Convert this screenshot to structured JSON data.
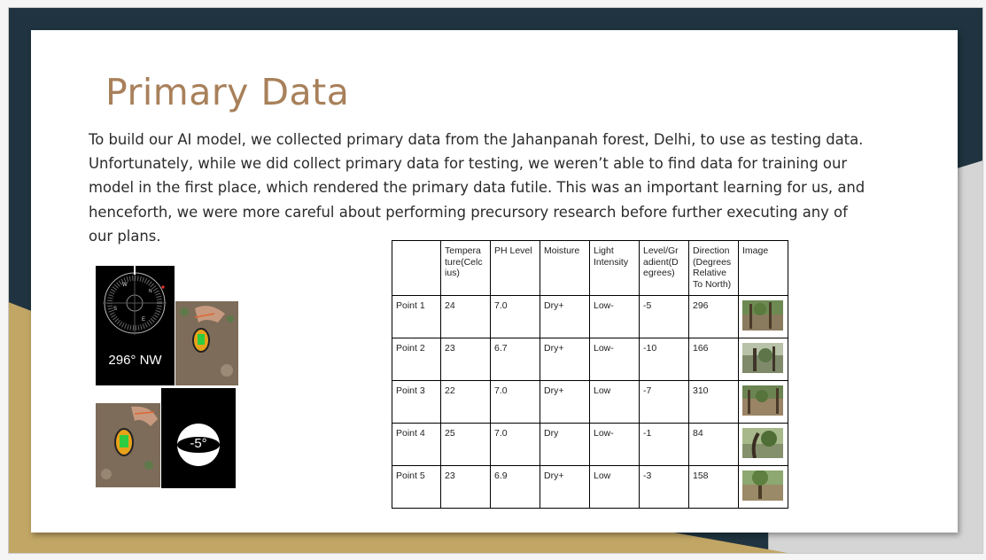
{
  "slide": {
    "title": "Primary Data",
    "body": "To build our AI model, we collected primary data from the Jahanpanah forest, Delhi, to use as testing data. Unfortunately, while we did collect primary data for testing, we weren’t able to find data for training our model in the first place, which rendered the primary data futile. This was an important learning for us, and henceforth, we were more careful about performing precursory research before further executing any of our plans."
  },
  "photos": {
    "compass_reading": "296° NW",
    "level_reading": "-5°"
  },
  "table": {
    "headers": [
      "",
      "Tempera ture(Celc ius)",
      "PH Level",
      "Moisture",
      "Light Intensity",
      "Level/Gr adient(D egrees)",
      "Direction (Degrees Relative To North)",
      "Image"
    ],
    "rows": [
      {
        "point": "Point 1",
        "temperature": "24",
        "ph": "7.0",
        "moisture": "Dry+",
        "light": "Low-",
        "level": "-5",
        "direction": "296"
      },
      {
        "point": "Point 2",
        "temperature": "23",
        "ph": "6.7",
        "moisture": "Dry+",
        "light": "Low-",
        "level": "-10",
        "direction": "166"
      },
      {
        "point": "Point 3",
        "temperature": "22",
        "ph": "7.0",
        "moisture": "Dry+",
        "light": "Low",
        "level": "-7",
        "direction": "310"
      },
      {
        "point": "Point 4",
        "temperature": "25",
        "ph": "7.0",
        "moisture": "Dry",
        "light": "Low-",
        "level": "-1",
        "direction": "84"
      },
      {
        "point": "Point 5",
        "temperature": "23",
        "ph": "6.9",
        "moisture": "Dry+",
        "light": "Low",
        "level": "-3",
        "direction": "158"
      }
    ]
  },
  "colors": {
    "title": "#a8805a",
    "dark_band": "#1f3440",
    "gold_band": "#c2a665",
    "gray_band": "#d5d5d5"
  }
}
